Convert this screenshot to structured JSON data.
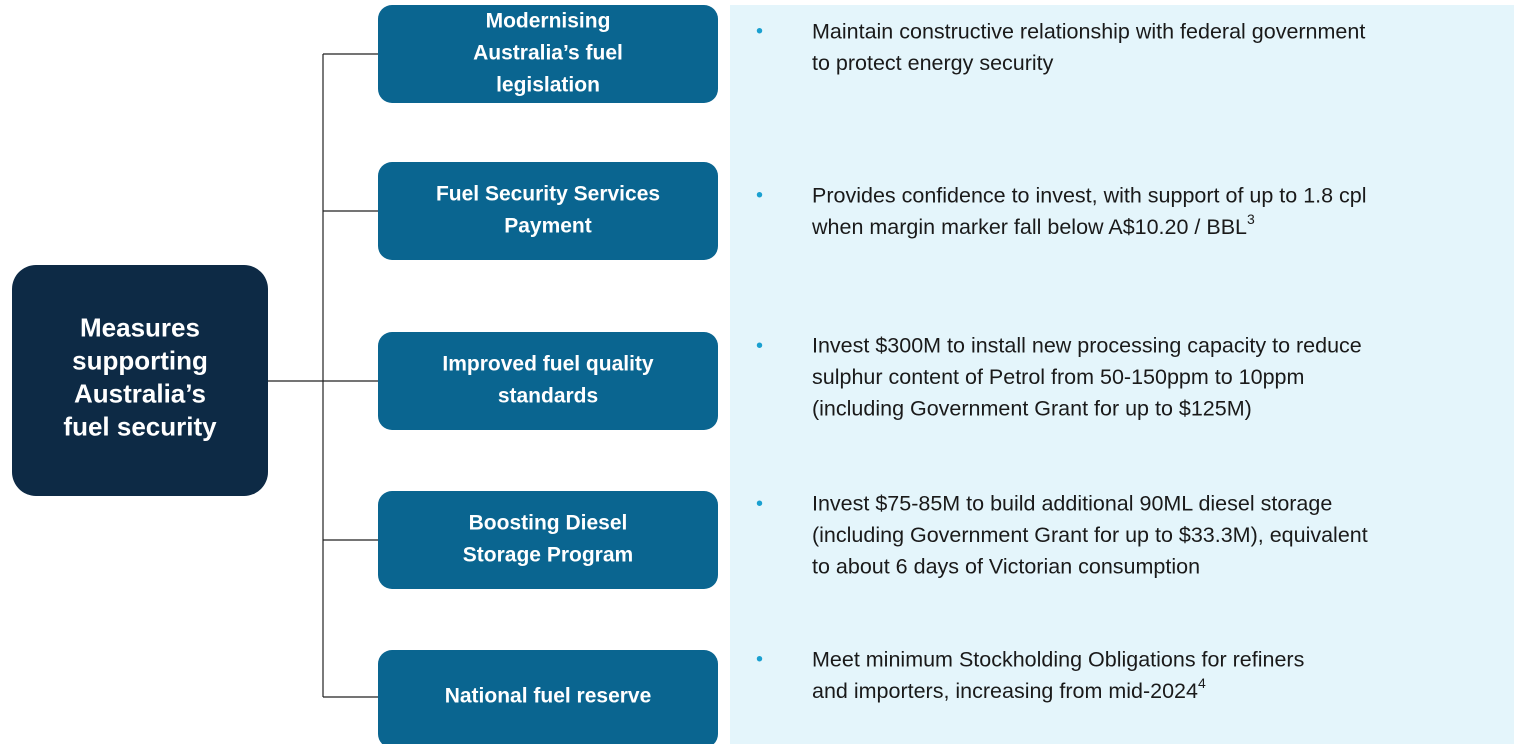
{
  "root": {
    "lines": [
      "Measures",
      "supporting",
      "Australia’s",
      "fuel security"
    ]
  },
  "nodes": [
    {
      "lines": [
        "Modernising",
        "Australia’s fuel",
        "legislation"
      ],
      "detail": [
        "Maintain constructive relationship with federal government",
        "to protect energy security"
      ]
    },
    {
      "lines": [
        "Fuel Security Services",
        "Payment"
      ],
      "detail": [
        "Provides confidence to invest, with support of up to 1.8 cpl",
        "when margin marker fall below A$10.20 / BBL"
      ],
      "superscript": "3"
    },
    {
      "lines": [
        "Improved fuel quality",
        "standards"
      ],
      "detail": [
        "Invest $300M to install new processing capacity to reduce",
        "sulphur content of Petrol from 50-150ppm to 10ppm",
        "(including Government Grant for up to $125M)"
      ]
    },
    {
      "lines": [
        "Boosting Diesel",
        "Storage Program"
      ],
      "detail": [
        "Invest $75-85M to build additional 90ML diesel storage",
        "(including Government Grant for up to $33.3M), equivalent",
        "to about 6 days of Victorian consumption"
      ]
    },
    {
      "lines": [
        "National fuel reserve"
      ],
      "detail": [
        "Meet minimum Stockholding Obligations for refiners",
        "and importers, increasing from mid-2024"
      ],
      "superscript": "4"
    }
  ]
}
